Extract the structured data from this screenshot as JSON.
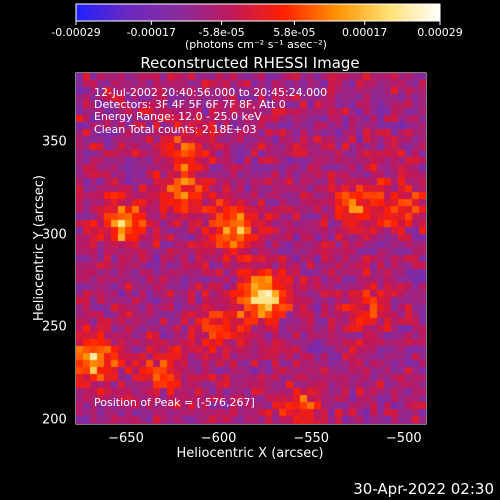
{
  "colorbar": {
    "ticks": [
      "-0.00029",
      "-0.00017",
      "-5.8e-05",
      "5.8e-05",
      "0.00017",
      "0.00029"
    ],
    "unit": "(photons cm⁻² s⁻¹ asec⁻²)",
    "colors": [
      "#2020ff",
      "#6a28c0",
      "#8a2b9b",
      "#c0185a",
      "#ff2000",
      "#ff9000",
      "#ffe070",
      "#ffffff"
    ]
  },
  "chart_data": {
    "type": "heatmap",
    "title": "Reconstructed RHESSI Image",
    "xlabel": "Heliocentric X (arcsec)",
    "ylabel": "Heliocentric Y (arcsec)",
    "xlim": [
      -677,
      -488
    ],
    "ylim": [
      198,
      387
    ],
    "x_ticks": [
      -650,
      -600,
      -550,
      -500
    ],
    "y_ticks": [
      200,
      250,
      300,
      350
    ],
    "value_range": [
      -0.00029,
      0.00029
    ],
    "annotations": [
      "12-Jul-2002 20:40:56.000 to 20:45:24.000",
      "Detectors: 3F 4F 5F 6F 7F 8F, Att 0",
      "Energy Range: 12.0 - 25.0 keV",
      "Clean     Total counts: 2.18E+03"
    ],
    "peak_label": "Position of Peak = [-576,267]",
    "peak": [
      -576,
      267
    ],
    "sources": [
      {
        "x": -576,
        "y": 267,
        "peak": 0.00029
      },
      {
        "x": -592,
        "y": 303,
        "peak": 0.00022
      },
      {
        "x": -652,
        "y": 305,
        "peak": 0.00021
      },
      {
        "x": -668,
        "y": 233,
        "peak": 0.00023
      },
      {
        "x": -619,
        "y": 322,
        "peak": 0.00015
      },
      {
        "x": -618,
        "y": 345,
        "peak": 0.00012
      },
      {
        "x": -526,
        "y": 317,
        "peak": 0.00016
      },
      {
        "x": -500,
        "y": 315,
        "peak": 0.00014
      },
      {
        "x": -630,
        "y": 228,
        "peak": 0.00012
      },
      {
        "x": -555,
        "y": 208,
        "peak": 0.00012
      },
      {
        "x": -520,
        "y": 262,
        "peak": 0.00011
      },
      {
        "x": -600,
        "y": 248,
        "peak": 0.00012
      }
    ]
  },
  "footer": "30-Apr-2022 02:30"
}
